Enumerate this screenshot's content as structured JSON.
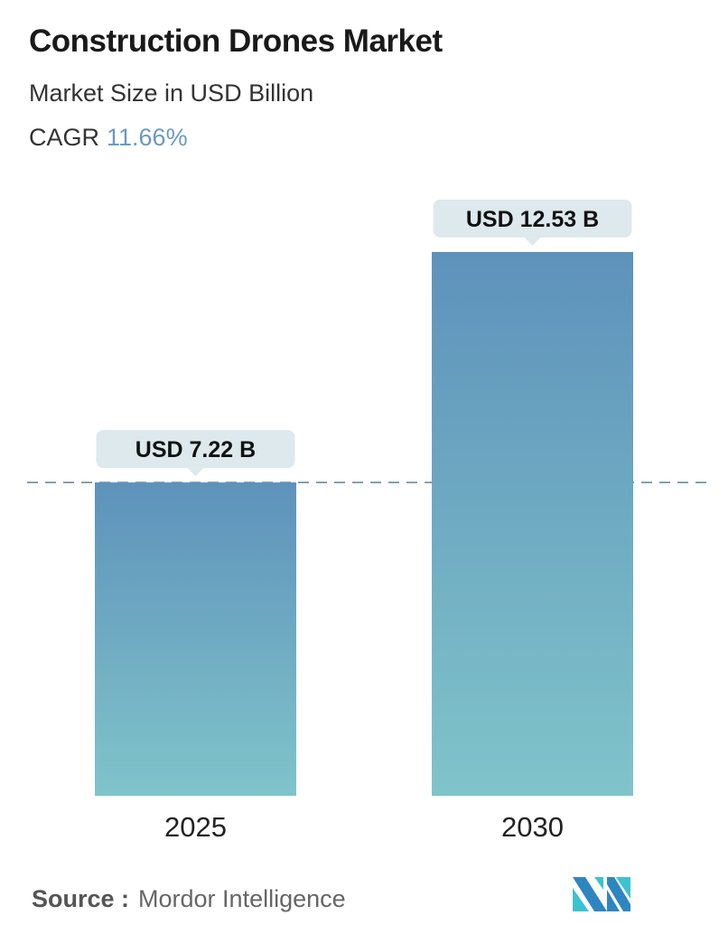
{
  "title": "Construction Drones Market",
  "subtitle": "Market Size in USD Billion",
  "cagr": {
    "label": "CAGR",
    "value": "11.66%"
  },
  "source": {
    "label": "Source :",
    "value": "Mordor Intelligence"
  },
  "logo": "Mordor Intelligence logo",
  "colors": {
    "bar_top": "#5e92bb",
    "bar_bottom": "#80c4ca",
    "label_box": "#dde9ec",
    "cagr": "#6a9ac0",
    "dashed_line": "#5b8299"
  },
  "chart_data": {
    "type": "bar",
    "categories": [
      "2025",
      "2030"
    ],
    "values": [
      7.22,
      12.53
    ],
    "data_labels": [
      "USD 7.22 B",
      "USD 12.53 B"
    ],
    "ylabel": "",
    "ylim": [
      0,
      13
    ],
    "grid": false,
    "reference_line": 7.22
  }
}
